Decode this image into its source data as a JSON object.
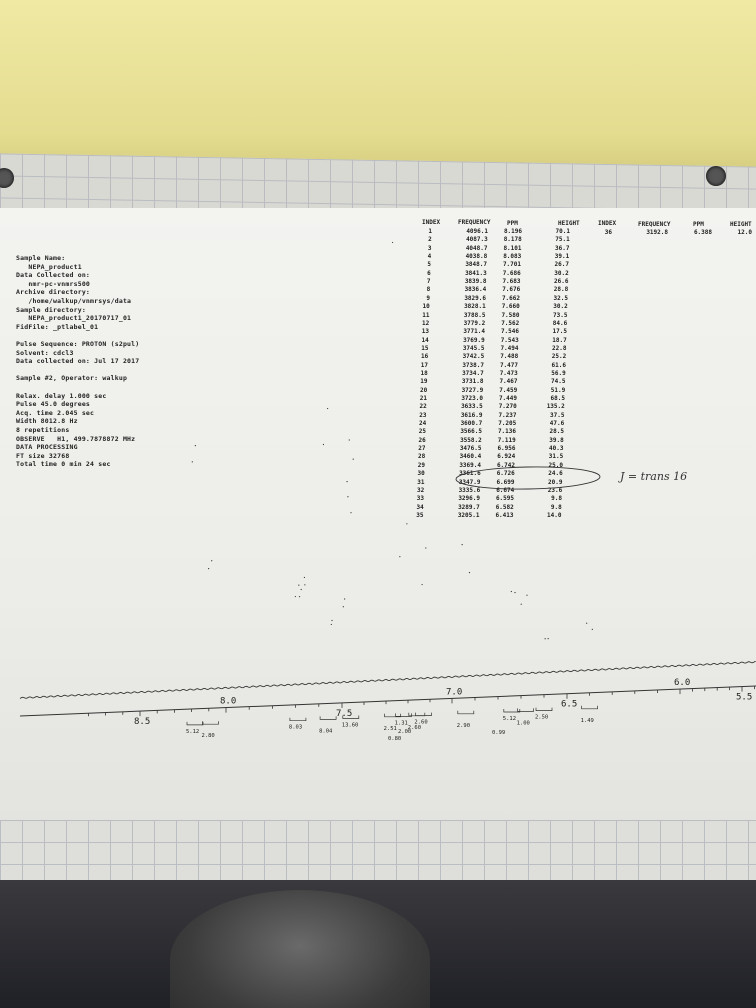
{
  "sample_info": {
    "lines": [
      "Sample Name:",
      "   NEPA_product1",
      "Data Collected on:",
      "   nmr-pc-vnmrs500",
      "Archive directory:",
      "   /home/walkup/vnmrsys/data",
      "Sample directory:",
      "   NEPA_product1_20170717_01",
      "FidFile: _ptlabel_01",
      "",
      "Pulse Sequence: PROTON (s2pul)",
      "Solvent: cdcl3",
      "Data collected on: Jul 17 2017",
      "",
      "Sample #2, Operator: walkup",
      "",
      "Relax. delay 1.000 sec",
      "Pulse 45.0 degrees",
      "Acq. time 2.045 sec",
      "Width 8012.8 Hz",
      "8 repetitions",
      "OBSERVE   H1, 499.7878872 MHz",
      "DATA PROCESSING",
      "FT size 32768",
      "Total time 0 min 24 sec"
    ]
  },
  "peak_table": {
    "headers": [
      "INDEX",
      "FREQUENCY",
      "PPM",
      "HEIGHT",
      "INDEX",
      "FREQUENCY",
      "PPM",
      "HEIGHT"
    ],
    "rows": [
      [
        "1",
        "4096.1",
        "8.196",
        "70.1"
      ],
      [
        "2",
        "4087.3",
        "8.178",
        "75.1"
      ],
      [
        "3",
        "4048.7",
        "8.101",
        "36.7"
      ],
      [
        "4",
        "4038.8",
        "8.083",
        "39.1"
      ],
      [
        "5",
        "3848.7",
        "7.701",
        "26.7"
      ],
      [
        "6",
        "3841.3",
        "7.686",
        "30.2"
      ],
      [
        "7",
        "3839.8",
        "7.683",
        "26.6"
      ],
      [
        "8",
        "3836.4",
        "7.676",
        "28.8"
      ],
      [
        "9",
        "3829.6",
        "7.662",
        "32.5"
      ],
      [
        "10",
        "3828.1",
        "7.660",
        "30.2"
      ],
      [
        "11",
        "3788.5",
        "7.580",
        "73.5"
      ],
      [
        "12",
        "3779.2",
        "7.562",
        "84.6"
      ],
      [
        "13",
        "3771.4",
        "7.546",
        "17.5"
      ],
      [
        "14",
        "3769.9",
        "7.543",
        "18.7"
      ],
      [
        "15",
        "3745.5",
        "7.494",
        "22.8"
      ],
      [
        "16",
        "3742.5",
        "7.488",
        "25.2"
      ],
      [
        "17",
        "3738.7",
        "7.477",
        "61.6"
      ],
      [
        "18",
        "3734.7",
        "7.473",
        "56.9"
      ],
      [
        "19",
        "3731.8",
        "7.467",
        "74.5"
      ],
      [
        "20",
        "3727.9",
        "7.459",
        "51.9"
      ],
      [
        "21",
        "3723.0",
        "7.449",
        "68.5"
      ],
      [
        "22",
        "3633.5",
        "7.270",
        "135.2"
      ],
      [
        "23",
        "3616.9",
        "7.237",
        "37.5"
      ],
      [
        "24",
        "3600.7",
        "7.205",
        "47.6"
      ],
      [
        "25",
        "3566.5",
        "7.136",
        "28.5"
      ],
      [
        "26",
        "3558.2",
        "7.119",
        "39.8"
      ],
      [
        "27",
        "3476.5",
        "6.956",
        "40.3"
      ],
      [
        "28",
        "3460.4",
        "6.924",
        "31.5"
      ],
      [
        "29",
        "3369.4",
        "6.742",
        "25.0"
      ],
      [
        "30",
        "3361.6",
        "6.726",
        "24.6"
      ],
      [
        "31",
        "3347.9",
        "6.699",
        "20.9"
      ],
      [
        "32",
        "3335.6",
        "6.674",
        "23.6"
      ],
      [
        "33",
        "3296.9",
        "6.595",
        "9.8"
      ],
      [
        "34",
        "3289.7",
        "6.582",
        "9.8"
      ],
      [
        "35",
        "3205.1",
        "6.413",
        "14.0"
      ]
    ],
    "rows2": [
      [
        "36",
        "3192.8",
        "6.388",
        "12.0"
      ]
    ]
  },
  "annotation": {
    "text": "J = trans 16"
  },
  "chart_data": {
    "type": "line",
    "title": "",
    "xlabel": "",
    "ylabel": "",
    "x_axis_reversed": true,
    "xlim": [
      8.8,
      5.3
    ],
    "x_ticks": [
      "8.5",
      "8.0",
      "7.5",
      "7.0",
      "6.5",
      "6.0",
      "5.5"
    ],
    "x_tick_values": [
      8.5,
      8.0,
      7.5,
      7.0,
      6.5,
      6.0,
      5.5
    ],
    "grid": false,
    "legend": "none",
    "peaks_ppm": [
      8.196,
      8.178,
      8.101,
      8.083,
      7.701,
      7.686,
      7.683,
      7.676,
      7.662,
      7.66,
      7.58,
      7.562,
      7.546,
      7.543,
      7.494,
      7.488,
      7.477,
      7.473,
      7.467,
      7.459,
      7.449,
      7.27,
      7.237,
      7.205,
      7.136,
      7.119,
      6.956,
      6.924,
      6.742,
      6.726,
      6.699,
      6.674,
      6.595,
      6.582,
      6.413,
      6.388
    ],
    "peak_heights": [
      70.1,
      75.1,
      36.7,
      39.1,
      26.7,
      30.2,
      26.6,
      28.8,
      32.5,
      30.2,
      73.5,
      84.6,
      17.5,
      18.7,
      22.8,
      25.2,
      61.6,
      56.9,
      74.5,
      51.9,
      68.5,
      135.2,
      37.5,
      47.6,
      28.5,
      39.8,
      40.3,
      31.5,
      25.0,
      24.6,
      20.9,
      23.6,
      9.8,
      9.8,
      14.0,
      12.0
    ],
    "integrals": [
      {
        "ppm": 8.18,
        "label": "5.12"
      },
      {
        "ppm": 8.09,
        "label": "2.80"
      },
      {
        "ppm": 7.69,
        "label": "8.03"
      },
      {
        "ppm": 7.56,
        "label": "8.04"
      },
      {
        "ppm": 7.46,
        "label": "13.60"
      },
      {
        "ppm": 7.27,
        "label": "2.51"
      },
      {
        "ppm": 7.22,
        "label": "1.31"
      },
      {
        "ppm": 7.16,
        "label": "2.60"
      },
      {
        "ppm": 7.13,
        "label": "2.60"
      },
      {
        "ppm": 6.94,
        "label": "2.90"
      },
      {
        "ppm": 6.74,
        "label": "5.12"
      },
      {
        "ppm": 6.68,
        "label": "1.00"
      },
      {
        "ppm": 6.6,
        "label": "2.50"
      },
      {
        "ppm": 6.4,
        "label": "1.49"
      }
    ],
    "integral_extra_labels": [
      "0.80",
      "2.00",
      "0.99"
    ]
  }
}
